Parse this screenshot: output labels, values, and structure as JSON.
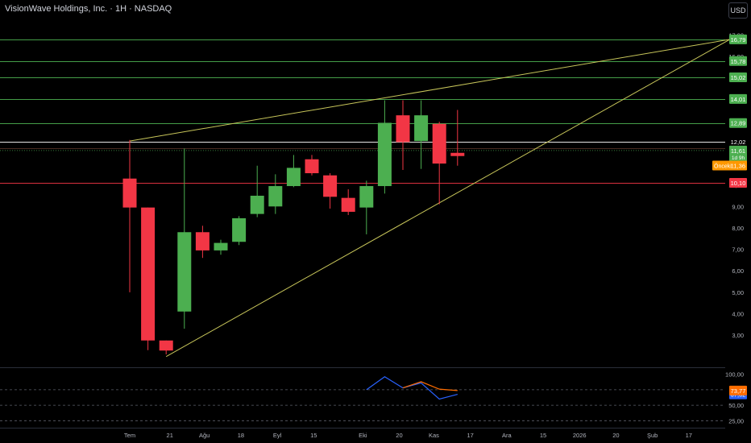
{
  "header": {
    "title": "VisionWave Holdings, Inc. · 1H · NASDAQ",
    "currency": "USD"
  },
  "chart_data": [
    {
      "type": "candlestick",
      "title": "VisionWave Holdings, Inc. · 1H · NASDAQ",
      "ylim": [
        1.5,
        17.5
      ],
      "y_ticks": [
        "17,00",
        "16,00",
        "10,00",
        "9,00",
        "8,00",
        "7,00",
        "6,00",
        "5,00",
        "4,00",
        "3,00"
      ],
      "x_ticks": [
        "Tem",
        "21",
        "Ağu",
        "18",
        "Eyl",
        "15",
        "Eki",
        "20",
        "Kas",
        "17",
        "Ara",
        "15",
        "2026",
        "20",
        "Şub",
        "17"
      ],
      "x_tick_slots": [
        0,
        2.2,
        4.1,
        6.1,
        8.1,
        10.1,
        12.8,
        14.8,
        16.7,
        18.7,
        20.7,
        22.7,
        24.7,
        26.7,
        28.7,
        30.7
      ],
      "candles": [
        {
          "slot": 0,
          "open": 10.3,
          "close": 8.95,
          "high": 12.1,
          "low": 5.0
        },
        {
          "slot": 1,
          "open": 8.95,
          "close": 2.75,
          "high": 8.95,
          "low": 2.3
        },
        {
          "slot": 2,
          "open": 2.75,
          "close": 2.28,
          "high": 2.75,
          "low": 2.1
        },
        {
          "slot": 3,
          "open": 4.1,
          "close": 7.8,
          "high": 11.7,
          "low": 3.3
        },
        {
          "slot": 4,
          "open": 7.8,
          "close": 6.95,
          "high": 8.1,
          "low": 6.6
        },
        {
          "slot": 5,
          "open": 6.95,
          "close": 7.3,
          "high": 7.45,
          "low": 6.75
        },
        {
          "slot": 6,
          "open": 7.35,
          "close": 8.45,
          "high": 8.55,
          "low": 7.2
        },
        {
          "slot": 7,
          "open": 8.65,
          "close": 9.5,
          "high": 10.9,
          "low": 8.5
        },
        {
          "slot": 8,
          "open": 9.0,
          "close": 9.95,
          "high": 10.5,
          "low": 8.65
        },
        {
          "slot": 9,
          "open": 9.95,
          "close": 10.8,
          "high": 11.4,
          "low": 9.9
        },
        {
          "slot": 10,
          "open": 11.2,
          "close": 10.55,
          "high": 11.4,
          "low": 10.45
        },
        {
          "slot": 11,
          "open": 10.45,
          "close": 9.45,
          "high": 10.55,
          "low": 8.9
        },
        {
          "slot": 12,
          "open": 9.4,
          "close": 8.75,
          "high": 9.8,
          "low": 8.6
        },
        {
          "slot": 13,
          "open": 8.95,
          "close": 9.95,
          "high": 10.2,
          "low": 7.7
        },
        {
          "slot": 14,
          "open": 9.95,
          "close": 12.9,
          "high": 13.95,
          "low": 9.6
        },
        {
          "slot": 15,
          "open": 13.25,
          "close": 12.0,
          "high": 13.95,
          "low": 10.7
        },
        {
          "slot": 16,
          "open": 12.05,
          "close": 13.25,
          "high": 13.95,
          "low": 10.75
        },
        {
          "slot": 17,
          "open": 12.85,
          "close": 11.0,
          "high": 12.95,
          "low": 9.1
        },
        {
          "slot": 18,
          "open": 11.5,
          "close": 11.35,
          "high": 13.5,
          "low": 10.9
        }
      ],
      "horizontal_levels": [
        {
          "value": 16.79,
          "label": "16,79",
          "color": "#4caf50"
        },
        {
          "value": 15.78,
          "label": "15,78",
          "color": "#4caf50"
        },
        {
          "value": 15.02,
          "label": "15,02",
          "color": "#4caf50"
        },
        {
          "value": 14.01,
          "label": "14,01",
          "color": "#4caf50"
        },
        {
          "value": 12.89,
          "label": "12,89",
          "color": "#4caf50"
        },
        {
          "value": 12.02,
          "label": "12,02",
          "color": "#ffffff"
        },
        {
          "value": 10.1,
          "label": "10,10",
          "color": "#f23645"
        }
      ],
      "price_tags": {
        "last_price": {
          "value": 11.61,
          "label": "11,61",
          "countdown": "1d 9h",
          "color": "#4caf50"
        },
        "previous": {
          "value": 11.36,
          "label": "11,36",
          "name": "Önceki",
          "color": "#ff9800"
        }
      },
      "trendlines": [
        {
          "from": {
            "slot": 0,
            "value": 12.05
          },
          "to": {
            "slot": 33,
            "value": 16.79
          },
          "color": "#c8c65a"
        },
        {
          "from": {
            "slot": 2,
            "value": 2.0
          },
          "to": {
            "slot": 33,
            "value": 16.79
          },
          "color": "#c8c65a"
        }
      ],
      "up_color": "#4caf50",
      "down_color": "#f23645",
      "grid": false
    },
    {
      "type": "line",
      "panel": "oscillator",
      "ylim": [
        15,
        110
      ],
      "y_ticks": [
        "100,00",
        "50,00",
        "25,00"
      ],
      "levels": [
        75,
        50,
        25
      ],
      "series": [
        {
          "color": "#2962ff",
          "points": [
            {
              "slot": 13,
              "value": 75
            },
            {
              "slot": 14,
              "value": 96
            },
            {
              "slot": 15,
              "value": 78
            },
            {
              "slot": 16,
              "value": 86
            },
            {
              "slot": 17,
              "value": 60
            },
            {
              "slot": 18,
              "value": 67.62
            }
          ],
          "label": "67,62"
        },
        {
          "color": "#ff6d00",
          "points": [
            {
              "slot": 15,
              "value": 78
            },
            {
              "slot": 16,
              "value": 88
            },
            {
              "slot": 17,
              "value": 76
            },
            {
              "slot": 18,
              "value": 73.77
            }
          ],
          "label": "73,77"
        }
      ]
    }
  ]
}
